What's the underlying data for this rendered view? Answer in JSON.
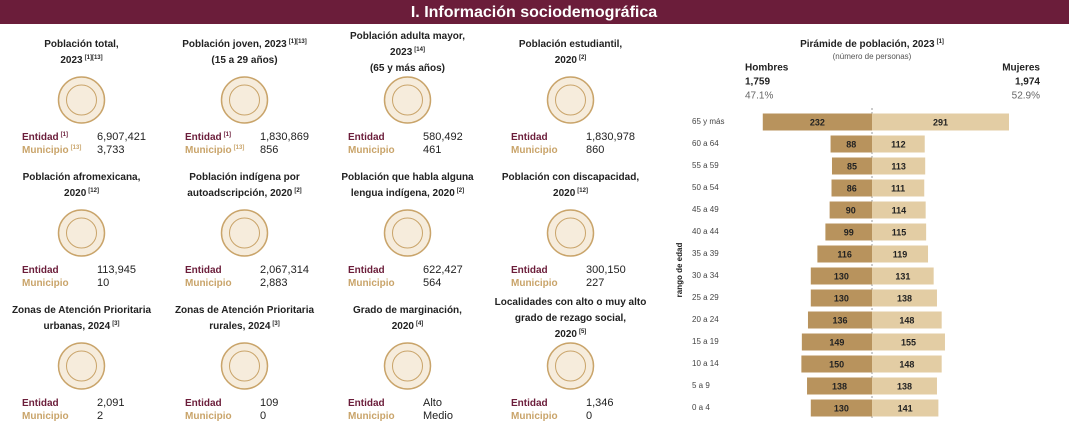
{
  "header": {
    "title": "I. Información sociodemográfica"
  },
  "labels": {
    "entidad": "Entidad",
    "municipio": "Municipio"
  },
  "cards": [
    {
      "title": [
        {
          "text": "Población total,"
        },
        {
          "text": "2023",
          "ref": "[1][13]"
        }
      ],
      "entidad": {
        "ref": "[1]",
        "value": "6,907,421"
      },
      "municipio": {
        "ref": "[13]",
        "value": "3,733"
      }
    },
    {
      "title": [
        {
          "text": "Población joven, 2023",
          "ref": "[1][13]"
        },
        {
          "text": "(15 a 29 años)"
        }
      ],
      "entidad": {
        "ref": "[1]",
        "value": "1,830,869"
      },
      "municipio": {
        "ref": "[13]",
        "value": "856"
      }
    },
    {
      "title": [
        {
          "text": "Población adulta mayor,"
        },
        {
          "text": "2023",
          "ref": "[14]"
        },
        {
          "text": "(65 y más años)"
        }
      ],
      "entidad": {
        "value": "580,492"
      },
      "municipio": {
        "value": "461"
      }
    },
    {
      "title": [
        {
          "text": "Población estudiantil,"
        },
        {
          "text": "2020",
          "ref": "[2]"
        }
      ],
      "entidad": {
        "value": "1,830,978"
      },
      "municipio": {
        "value": "860"
      }
    },
    {
      "title": [
        {
          "text": "Población afromexicana,"
        },
        {
          "text": "2020",
          "ref": "[12]"
        }
      ],
      "entidad": {
        "value": "113,945"
      },
      "municipio": {
        "value": "10"
      }
    },
    {
      "title": [
        {
          "text": "Población indígena por"
        },
        {
          "text": "autoadscripción, 2020",
          "ref": "[2]"
        }
      ],
      "entidad": {
        "value": "2,067,314"
      },
      "municipio": {
        "value": "2,883"
      }
    },
    {
      "title": [
        {
          "text": "Población que habla alguna"
        },
        {
          "text": "lengua indígena, 2020",
          "ref": "[2]"
        }
      ],
      "entidad": {
        "value": "622,427"
      },
      "municipio": {
        "value": "564"
      }
    },
    {
      "title": [
        {
          "text": "Población con discapacidad,"
        },
        {
          "text": "2020",
          "ref": "[12]"
        }
      ],
      "entidad": {
        "value": "300,150"
      },
      "municipio": {
        "value": "227"
      }
    },
    {
      "title": [
        {
          "text": "Zonas de Atención Prioritaria"
        },
        {
          "text": "urbanas, 2024",
          "ref": "[3]"
        }
      ],
      "entidad": {
        "value": "2,091"
      },
      "municipio": {
        "value": "2"
      }
    },
    {
      "title": [
        {
          "text": "Zonas de Atención Prioritaria"
        },
        {
          "text": "rurales, 2024",
          "ref": "[3]"
        }
      ],
      "entidad": {
        "value": "109"
      },
      "municipio": {
        "value": "0"
      }
    },
    {
      "title": [
        {
          "text": "Grado de marginación,"
        },
        {
          "text": "2020",
          "ref": "[4]"
        }
      ],
      "entidad": {
        "value": "Alto"
      },
      "municipio": {
        "value": "Medio"
      }
    },
    {
      "title": [
        {
          "text": "Localidades con alto o muy alto"
        },
        {
          "text": "grado de rezago social,"
        },
        {
          "text": "2020",
          "ref": "[5]"
        }
      ],
      "entidad": {
        "value": "1,346"
      },
      "municipio": {
        "value": "0"
      }
    }
  ],
  "chart_data": {
    "type": "pyramid",
    "title": "Pirámide de población, 2023",
    "title_ref": "[1]",
    "subtitle": "(número de personas)",
    "y_label": "rango de edad",
    "totals": [
      {
        "name": "Hombres",
        "value": "1,759",
        "share": "47.1%"
      },
      {
        "name": "Mujeres",
        "value": "1,974",
        "share": "52.9%"
      }
    ],
    "categories": [
      "65 y más",
      "60 a 64",
      "55 a 59",
      "50 a 54",
      "45 a 49",
      "40 a 44",
      "35 a 39",
      "30 a 34",
      "25 a 29",
      "20 a 24",
      "15 a 19",
      "10 a 14",
      "5 a 9",
      "0 a 4"
    ],
    "series": [
      {
        "color": "#b8935d",
        "values": [
          232,
          88,
          85,
          86,
          90,
          99,
          116,
          130,
          130,
          136,
          149,
          150,
          138,
          130
        ]
      },
      {
        "color": "#e3cda4",
        "values": [
          291,
          112,
          113,
          111,
          114,
          115,
          119,
          131,
          138,
          148,
          155,
          148,
          138,
          141
        ]
      }
    ]
  }
}
